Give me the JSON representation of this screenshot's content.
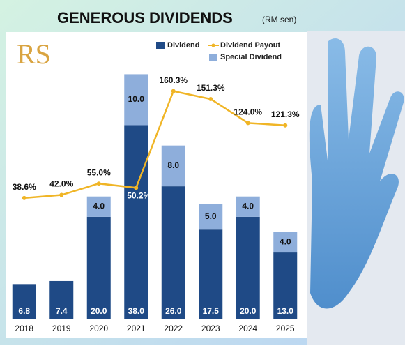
{
  "chart_data": {
    "type": "stacked-bar-line",
    "title": "GENEROUS DIVIDENDS",
    "subtitle": "(RM sen)",
    "logo": "RS",
    "categories": [
      "2018",
      "2019",
      "2020",
      "2021",
      "2022",
      "2023",
      "2024",
      "2025"
    ],
    "series": [
      {
        "name": "Dividend",
        "color": "#1f4a86",
        "values": [
          6.8,
          7.4,
          20.0,
          38.0,
          26.0,
          17.5,
          20.0,
          13.0
        ],
        "value_labels": [
          "6.8",
          "7.4",
          "20.0",
          "38.0",
          "26.0",
          "17.5",
          "20.0",
          "13.0"
        ]
      },
      {
        "name": "Dividend Payout",
        "color": "#f0b526",
        "axis": "y2",
        "values": [
          38.6,
          42.0,
          55.0,
          50.2,
          160.3,
          151.3,
          124.0,
          121.3
        ],
        "value_labels": [
          "38.6%",
          "42.0%",
          "55.0%",
          "50.2%",
          "160.3%",
          "151.3%",
          "124.0%",
          "121.3%"
        ]
      },
      {
        "name": "Special Dividend",
        "color": "#8eaedb",
        "values": [
          null,
          null,
          4.0,
          10.0,
          8.0,
          5.0,
          4.0,
          4.0
        ],
        "value_labels": [
          null,
          null,
          "4.0",
          "10.0",
          "8.0",
          "5.0",
          "4.0",
          "4.0"
        ]
      }
    ],
    "ylim": [
      0,
      56
    ],
    "y2lim": [
      -99,
      226
    ],
    "legend": "top-right"
  }
}
